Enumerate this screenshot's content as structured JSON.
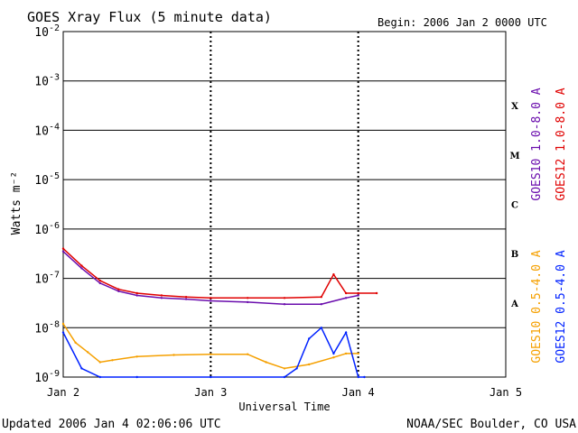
{
  "header": {
    "title": "GOES Xray Flux (5 minute data)",
    "begin": "Begin:  2006 Jan 2 0000 UTC"
  },
  "footer": {
    "updated": "Updated 2006 Jan  4 02:06:06 UTC",
    "credit": "NOAA/SEC Boulder, CO USA"
  },
  "colors": {
    "goes10_long": "#6a0dad",
    "goes12_long": "#e00000",
    "goes10_short": "#f5a000",
    "goes12_short": "#0022ff"
  },
  "chart_data": {
    "type": "line",
    "title": "GOES Xray Flux (5 minute data)",
    "xlabel": "Universal Time",
    "ylabel": "Watts m⁻²",
    "y_scale": "log",
    "ylim": [
      1e-09,
      0.01
    ],
    "y_ticks": [
      {
        "base": "10",
        "exp": "-9"
      },
      {
        "base": "10",
        "exp": "-8"
      },
      {
        "base": "10",
        "exp": "-7"
      },
      {
        "base": "10",
        "exp": "-6"
      },
      {
        "base": "10",
        "exp": "-5"
      },
      {
        "base": "10",
        "exp": "-4"
      },
      {
        "base": "10",
        "exp": "-3"
      },
      {
        "base": "10",
        "exp": "-2"
      }
    ],
    "x_ticks": [
      "Jan 2",
      "Jan 3",
      "Jan 4",
      "Jan 5"
    ],
    "x_range_days": [
      "Jan 2",
      "Jan 5"
    ],
    "flare_classes": [
      {
        "label": "A",
        "log_lo": -8
      },
      {
        "label": "B",
        "log_lo": -7
      },
      {
        "label": "C",
        "log_lo": -6
      },
      {
        "label": "M",
        "log_lo": -5
      },
      {
        "label": "X",
        "log_lo": -4
      }
    ],
    "legend_placement": "right",
    "series": [
      {
        "name": "GOES10 1.0-8.0 A",
        "color_key": "goes10_long",
        "x": [
          "Jan 2 00:00",
          "Jan 2 03:00",
          "Jan 2 06:00",
          "Jan 2 09:00",
          "Jan 2 12:00",
          "Jan 2 16:00",
          "Jan 2 20:00",
          "Jan 3 00:00",
          "Jan 3 06:00",
          "Jan 3 12:00",
          "Jan 3 18:00",
          "Jan 3 22:00",
          "Jan 4 00:00"
        ],
        "y": [
          3.5e-07,
          1.6e-07,
          8e-08,
          5.5e-08,
          4.5e-08,
          4e-08,
          3.8e-08,
          3.5e-08,
          3.3e-08,
          3e-08,
          3e-08,
          4e-08,
          4.5e-08
        ]
      },
      {
        "name": "GOES12 1.0-8.0 A",
        "color_key": "goes12_long",
        "x": [
          "Jan 2 00:00",
          "Jan 2 03:00",
          "Jan 2 06:00",
          "Jan 2 09:00",
          "Jan 2 12:00",
          "Jan 2 16:00",
          "Jan 2 20:00",
          "Jan 3 00:00",
          "Jan 3 06:00",
          "Jan 3 12:00",
          "Jan 3 18:00",
          "Jan 3 20:00",
          "Jan 3 22:00",
          "Jan 4 00:00",
          "Jan 4 03:00"
        ],
        "y": [
          4e-07,
          1.8e-07,
          9e-08,
          6e-08,
          5e-08,
          4.5e-08,
          4.2e-08,
          4e-08,
          4e-08,
          4e-08,
          4.2e-08,
          1.2e-07,
          5e-08,
          5e-08,
          5e-08
        ]
      },
      {
        "name": "GOES10 0.5-4.0 A",
        "color_key": "goes10_short",
        "x": [
          "Jan 2 00:00",
          "Jan 2 02:00",
          "Jan 2 04:00",
          "Jan 2 06:00",
          "Jan 2 08:00",
          "Jan 2 12:00",
          "Jan 2 18:00",
          "Jan 3 00:00",
          "Jan 3 06:00",
          "Jan 3 09:00",
          "Jan 3 12:00",
          "Jan 3 16:00",
          "Jan 3 20:00",
          "Jan 3 22:00",
          "Jan 4 00:00"
        ],
        "y": [
          1.2e-08,
          5e-09,
          3.2e-09,
          2e-09,
          2.2e-09,
          2.6e-09,
          2.8e-09,
          2.9e-09,
          2.9e-09,
          2e-09,
          1.5e-09,
          1.8e-09,
          2.5e-09,
          3e-09,
          3e-09
        ]
      },
      {
        "name": "GOES12 0.5-4.0 A",
        "color_key": "goes12_short",
        "x": [
          "Jan 2 00:00",
          "Jan 2 03:00",
          "Jan 2 06:00",
          "Jan 2 12:00",
          "Jan 3 00:00",
          "Jan 3 12:00",
          "Jan 3 14:00",
          "Jan 3 16:00",
          "Jan 3 18:00",
          "Jan 3 20:00",
          "Jan 3 22:00",
          "Jan 4 00:00",
          "Jan 4 01:00"
        ],
        "y": [
          8e-09,
          1.5e-09,
          1e-09,
          1e-09,
          1e-09,
          1e-09,
          1.5e-09,
          6e-09,
          1e-08,
          3e-09,
          8e-09,
          1e-09,
          1e-09
        ]
      }
    ]
  }
}
